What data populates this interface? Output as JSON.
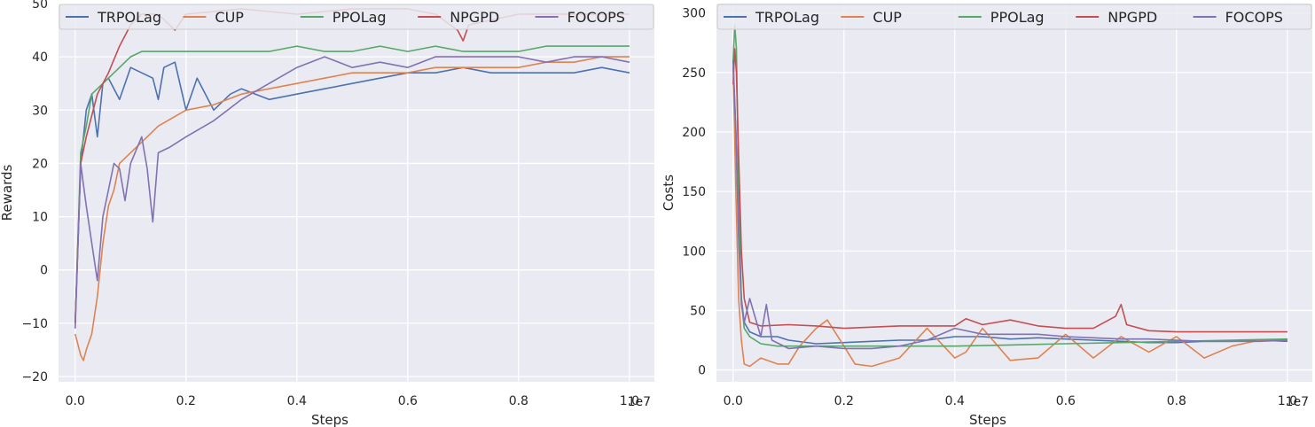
{
  "chart_data": [
    {
      "type": "line",
      "xlabel": "Steps",
      "ylabel": "Rewards",
      "x_offset_label": "1e7",
      "xlim": [
        -0.03,
        1.045
      ],
      "ylim": [
        -21,
        50
      ],
      "xticks": [
        0.0,
        0.2,
        0.4,
        0.6,
        0.8,
        1.0
      ],
      "xtick_labels": [
        "0.0",
        "0.2",
        "0.4",
        "0.6",
        "0.8",
        "1.0"
      ],
      "yticks": [
        -20,
        -10,
        0,
        10,
        20,
        30,
        40,
        50
      ],
      "ytick_labels": [
        "−20",
        "−10",
        "0",
        "10",
        "20",
        "30",
        "40",
        "50"
      ],
      "grid": true,
      "legend_position": "top",
      "series": [
        {
          "name": "TRPOLag",
          "color": "#4c72b0",
          "x": [
            0,
            0.01,
            0.02,
            0.03,
            0.04,
            0.05,
            0.06,
            0.07,
            0.08,
            0.1,
            0.12,
            0.14,
            0.15,
            0.16,
            0.18,
            0.2,
            0.22,
            0.25,
            0.28,
            0.3,
            0.35,
            0.4,
            0.45,
            0.5,
            0.55,
            0.6,
            0.65,
            0.7,
            0.75,
            0.8,
            0.85,
            0.9,
            0.95,
            1.0
          ],
          "y": [
            -10,
            20,
            30,
            33,
            25,
            35,
            36,
            34,
            32,
            38,
            37,
            36,
            32,
            38,
            39,
            30,
            36,
            30,
            33,
            34,
            32,
            33,
            34,
            35,
            36,
            37,
            37,
            38,
            37,
            37,
            37,
            37,
            38,
            37
          ]
        },
        {
          "name": "CUP",
          "color": "#dd8452",
          "x": [
            0,
            0.01,
            0.015,
            0.02,
            0.03,
            0.04,
            0.05,
            0.06,
            0.07,
            0.08,
            0.1,
            0.12,
            0.15,
            0.2,
            0.25,
            0.3,
            0.35,
            0.4,
            0.45,
            0.5,
            0.55,
            0.6,
            0.65,
            0.7,
            0.75,
            0.8,
            0.85,
            0.9,
            0.95,
            1.0
          ],
          "y": [
            -12,
            -16,
            -17,
            -15,
            -12,
            -5,
            5,
            12,
            15,
            20,
            22,
            24,
            27,
            30,
            31,
            33,
            34,
            35,
            36,
            37,
            37,
            37,
            38,
            38,
            38,
            38,
            39,
            39,
            40,
            40
          ]
        },
        {
          "name": "PPOLag",
          "color": "#55a868",
          "x": [
            0,
            0.01,
            0.02,
            0.03,
            0.04,
            0.05,
            0.06,
            0.08,
            0.1,
            0.12,
            0.15,
            0.2,
            0.25,
            0.3,
            0.35,
            0.4,
            0.45,
            0.5,
            0.55,
            0.6,
            0.65,
            0.7,
            0.75,
            0.8,
            0.85,
            0.9,
            0.95,
            1.0
          ],
          "y": [
            -10,
            22,
            27,
            33,
            34,
            35,
            36,
            38,
            40,
            41,
            41,
            41,
            41,
            41,
            41,
            42,
            41,
            41,
            42,
            41,
            42,
            41,
            41,
            41,
            42,
            42,
            42,
            42
          ]
        },
        {
          "name": "NPGPD",
          "color": "#c44e52",
          "x": [
            0,
            0.01,
            0.02,
            0.04,
            0.06,
            0.08,
            0.1,
            0.12,
            0.15,
            0.18,
            0.2,
            0.3,
            0.4,
            0.5,
            0.6,
            0.65,
            0.69,
            0.7,
            0.71,
            0.8,
            0.9,
            1.0
          ],
          "y": [
            -10,
            20,
            25,
            33,
            37,
            42,
            46,
            48,
            48,
            45,
            48,
            49,
            48,
            49,
            49,
            48,
            45,
            43,
            46,
            48,
            48,
            48
          ]
        },
        {
          "name": "FOCOPS",
          "color": "#8172b3",
          "x": [
            0,
            0.01,
            0.015,
            0.02,
            0.03,
            0.04,
            0.05,
            0.06,
            0.07,
            0.08,
            0.09,
            0.1,
            0.12,
            0.13,
            0.14,
            0.15,
            0.17,
            0.2,
            0.25,
            0.3,
            0.35,
            0.4,
            0.45,
            0.5,
            0.55,
            0.6,
            0.65,
            0.7,
            0.75,
            0.8,
            0.85,
            0.9,
            0.95,
            1.0
          ],
          "y": [
            -11,
            20,
            16,
            12,
            5,
            -2,
            10,
            15,
            20,
            19,
            13,
            20,
            25,
            19,
            9,
            22,
            23,
            25,
            28,
            32,
            35,
            38,
            40,
            38,
            39,
            38,
            40,
            40,
            40,
            40,
            39,
            40,
            40,
            39
          ]
        }
      ]
    },
    {
      "type": "line",
      "xlabel": "Steps",
      "ylabel": "Costs",
      "x_offset_label": "1e7",
      "xlim": [
        -0.03,
        1.045
      ],
      "ylim": [
        -10,
        308
      ],
      "xticks": [
        0.0,
        0.2,
        0.4,
        0.6,
        0.8,
        1.0
      ],
      "xtick_labels": [
        "0.0",
        "0.2",
        "0.4",
        "0.6",
        "0.8",
        "1.0"
      ],
      "yticks": [
        0,
        50,
        100,
        150,
        200,
        250,
        300
      ],
      "ytick_labels": [
        "0",
        "50",
        "100",
        "150",
        "200",
        "250",
        "300"
      ],
      "grid": true,
      "legend_position": "top",
      "series": [
        {
          "name": "TRPOLag",
          "color": "#4c72b0",
          "x": [
            0,
            0.005,
            0.01,
            0.015,
            0.02,
            0.03,
            0.05,
            0.08,
            0.1,
            0.15,
            0.2,
            0.25,
            0.3,
            0.35,
            0.4,
            0.45,
            0.5,
            0.55,
            0.6,
            0.65,
            0.7,
            0.75,
            0.8,
            0.85,
            0.9,
            0.95,
            1.0
          ],
          "y": [
            260,
            200,
            120,
            60,
            40,
            32,
            28,
            28,
            25,
            22,
            23,
            24,
            25,
            25,
            28,
            28,
            26,
            27,
            26,
            25,
            24,
            23,
            23,
            24,
            24,
            25,
            24
          ]
        },
        {
          "name": "CUP",
          "color": "#dd8452",
          "x": [
            0,
            0.005,
            0.01,
            0.015,
            0.02,
            0.03,
            0.05,
            0.08,
            0.1,
            0.12,
            0.15,
            0.17,
            0.2,
            0.22,
            0.25,
            0.3,
            0.35,
            0.4,
            0.42,
            0.45,
            0.5,
            0.55,
            0.6,
            0.65,
            0.7,
            0.75,
            0.8,
            0.85,
            0.9,
            0.95,
            1.0
          ],
          "y": [
            255,
            150,
            60,
            25,
            5,
            3,
            10,
            5,
            5,
            20,
            35,
            42,
            20,
            5,
            3,
            10,
            35,
            10,
            15,
            35,
            8,
            10,
            30,
            10,
            28,
            15,
            28,
            10,
            20,
            25,
            25
          ]
        },
        {
          "name": "PPOLag",
          "color": "#55a868",
          "x": [
            0,
            0.003,
            0.006,
            0.01,
            0.015,
            0.02,
            0.03,
            0.05,
            0.08,
            0.1,
            0.15,
            0.2,
            0.3,
            0.4,
            0.5,
            0.6,
            0.7,
            0.8,
            0.9,
            1.0
          ],
          "y": [
            260,
            290,
            270,
            150,
            60,
            35,
            28,
            22,
            20,
            20,
            20,
            20,
            20,
            20,
            21,
            22,
            23,
            24,
            25,
            26
          ]
        },
        {
          "name": "NPGPD",
          "color": "#c44e52",
          "x": [
            0,
            0.003,
            0.006,
            0.01,
            0.015,
            0.02,
            0.03,
            0.05,
            0.1,
            0.15,
            0.2,
            0.3,
            0.4,
            0.42,
            0.45,
            0.5,
            0.55,
            0.6,
            0.65,
            0.69,
            0.7,
            0.71,
            0.75,
            0.8,
            0.9,
            1.0
          ],
          "y": [
            240,
            270,
            250,
            180,
            100,
            60,
            40,
            37,
            38,
            37,
            35,
            37,
            37,
            43,
            38,
            42,
            37,
            35,
            35,
            45,
            55,
            38,
            33,
            32,
            32,
            32
          ]
        },
        {
          "name": "FOCOPS",
          "color": "#8172b3",
          "x": [
            0,
            0.005,
            0.01,
            0.015,
            0.02,
            0.03,
            0.05,
            0.06,
            0.07,
            0.1,
            0.15,
            0.2,
            0.25,
            0.3,
            0.35,
            0.4,
            0.45,
            0.5,
            0.55,
            0.6,
            0.65,
            0.7,
            0.75,
            0.8,
            0.85,
            0.9,
            0.95,
            1.0
          ],
          "y": [
            255,
            200,
            110,
            55,
            40,
            60,
            28,
            55,
            25,
            18,
            20,
            18,
            18,
            20,
            25,
            35,
            30,
            30,
            30,
            28,
            27,
            26,
            26,
            25,
            24,
            24,
            24,
            25
          ]
        }
      ]
    }
  ]
}
